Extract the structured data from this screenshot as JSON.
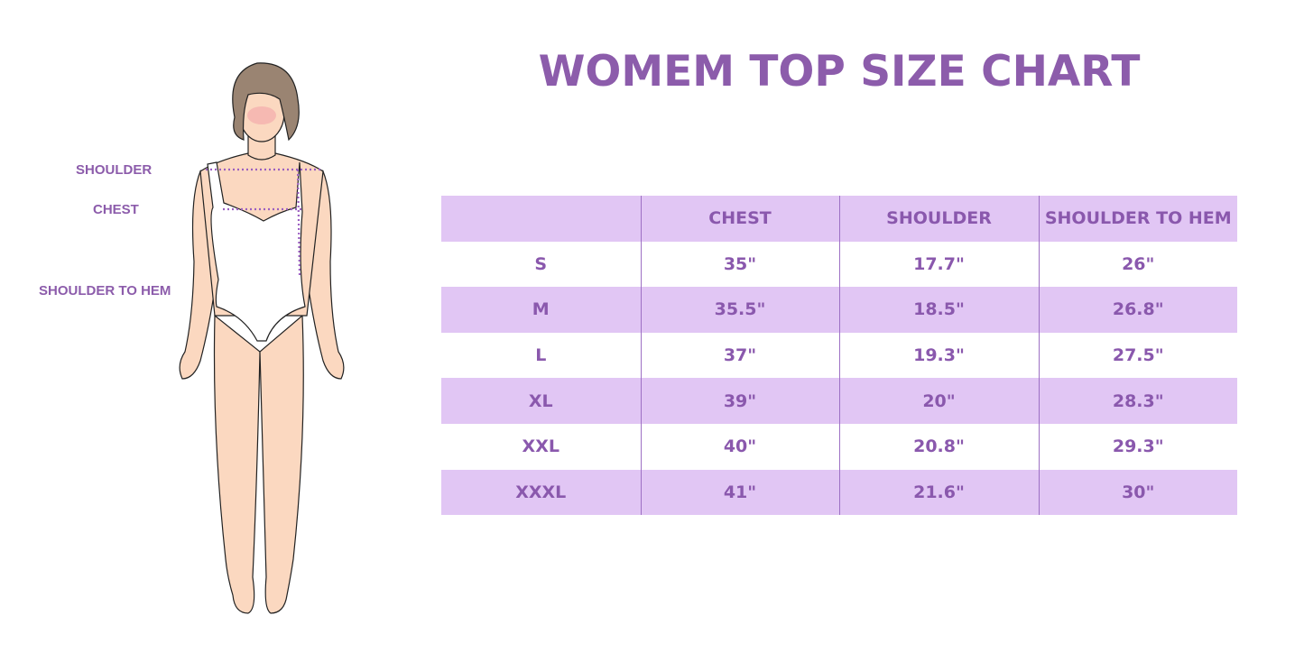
{
  "title": "WOMEM TOP SIZE CHART",
  "figure_labels": {
    "shoulder": "SHOULDER",
    "chest": "CHEST",
    "shoulder_to_hem": "SHOULDER TO HEM"
  },
  "colors": {
    "accent": "#8c5cab",
    "row_shade": "#e1c6f4",
    "divider": "#9d70c4",
    "skin": "#fbd8c0",
    "hair": "#9a8472"
  },
  "chart_data": {
    "type": "table",
    "title": "WOMEM TOP SIZE CHART",
    "columns": [
      "",
      "CHEST",
      "SHOULDER",
      "SHOULDER TO HEM"
    ],
    "rows": [
      [
        "S",
        "35\"",
        "17.7\"",
        "26\""
      ],
      [
        "M",
        "35.5\"",
        "18.5\"",
        "26.8\""
      ],
      [
        "L",
        "37\"",
        "19.3\"",
        "27.5\""
      ],
      [
        "XL",
        "39\"",
        "20\"",
        "28.3\""
      ],
      [
        "XXL",
        "40\"",
        "20.8\"",
        "29.3\""
      ],
      [
        "XXXL",
        "41\"",
        "21.6\"",
        "30\""
      ]
    ]
  }
}
